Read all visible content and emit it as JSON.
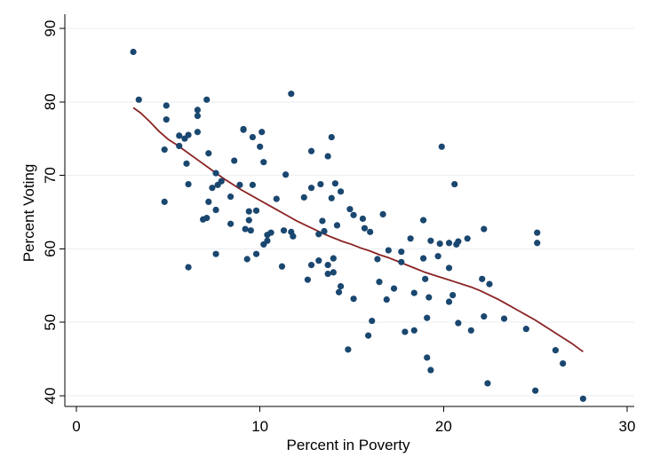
{
  "chart_data": {
    "type": "scatter",
    "title": "",
    "xlabel": "Percent in Poverty",
    "ylabel": "Percent Voting",
    "xlim": [
      0,
      30
    ],
    "ylim": [
      40,
      90
    ],
    "xticks": [
      0,
      10,
      20,
      30
    ],
    "yticks": [
      40,
      50,
      60,
      70,
      80,
      90
    ],
    "grid": "horizontal",
    "legend": "none",
    "colors": {
      "points": "#1a476f",
      "fit_line": "#8b2323",
      "background": "#ffffff",
      "grid": "#e9eef2"
    },
    "series": [
      {
        "kind": "points",
        "points": [
          [
            3.1,
            86.8
          ],
          [
            3.4,
            80.3
          ],
          [
            4.8,
            73.5
          ],
          [
            4.8,
            66.4
          ],
          [
            4.9,
            79.5
          ],
          [
            4.9,
            77.6
          ],
          [
            5.6,
            75.4
          ],
          [
            5.6,
            74.0
          ],
          [
            5.9,
            75.0
          ],
          [
            6.1,
            75.5
          ],
          [
            6.0,
            71.6
          ],
          [
            6.1,
            68.8
          ],
          [
            6.1,
            57.5
          ],
          [
            6.6,
            78.9
          ],
          [
            6.6,
            78.1
          ],
          [
            6.6,
            75.9
          ],
          [
            6.9,
            64.0
          ],
          [
            7.1,
            64.2
          ],
          [
            7.1,
            80.3
          ],
          [
            7.2,
            73.0
          ],
          [
            7.2,
            66.4
          ],
          [
            7.4,
            68.3
          ],
          [
            7.6,
            65.3
          ],
          [
            7.6,
            70.3
          ],
          [
            7.6,
            59.3
          ],
          [
            7.7,
            68.7
          ],
          [
            7.9,
            69.2
          ],
          [
            8.4,
            67.1
          ],
          [
            8.4,
            63.4
          ],
          [
            8.6,
            72.0
          ],
          [
            8.9,
            68.7
          ],
          [
            9.1,
            76.3
          ],
          [
            9.1,
            76.2
          ],
          [
            9.2,
            62.7
          ],
          [
            9.3,
            58.6
          ],
          [
            9.4,
            63.9
          ],
          [
            9.4,
            65.1
          ],
          [
            9.5,
            62.5
          ],
          [
            9.6,
            68.7
          ],
          [
            9.6,
            75.2
          ],
          [
            9.8,
            59.3
          ],
          [
            9.8,
            65.2
          ],
          [
            10.0,
            73.9
          ],
          [
            10.1,
            75.9
          ],
          [
            10.2,
            71.8
          ],
          [
            10.2,
            60.6
          ],
          [
            10.4,
            61.1
          ],
          [
            10.4,
            61.9
          ],
          [
            10.6,
            62.2
          ],
          [
            10.9,
            66.8
          ],
          [
            11.2,
            57.6
          ],
          [
            11.3,
            62.5
          ],
          [
            11.4,
            70.1
          ],
          [
            11.7,
            81.1
          ],
          [
            11.7,
            62.3
          ],
          [
            11.8,
            61.7
          ],
          [
            12.4,
            67.0
          ],
          [
            12.6,
            55.8
          ],
          [
            12.8,
            73.3
          ],
          [
            12.8,
            68.3
          ],
          [
            12.8,
            57.8
          ],
          [
            13.2,
            58.4
          ],
          [
            13.2,
            62.0
          ],
          [
            13.3,
            68.8
          ],
          [
            13.4,
            63.8
          ],
          [
            13.5,
            62.4
          ],
          [
            13.7,
            72.6
          ],
          [
            13.7,
            56.6
          ],
          [
            13.7,
            57.8
          ],
          [
            13.9,
            66.9
          ],
          [
            13.9,
            75.2
          ],
          [
            14.0,
            56.8
          ],
          [
            14.0,
            58.7
          ],
          [
            14.1,
            68.9
          ],
          [
            14.2,
            63.2
          ],
          [
            14.3,
            54.1
          ],
          [
            14.4,
            54.9
          ],
          [
            14.4,
            67.8
          ],
          [
            14.8,
            46.3
          ],
          [
            14.9,
            65.4
          ],
          [
            15.1,
            53.2
          ],
          [
            15.1,
            64.6
          ],
          [
            15.6,
            64.1
          ],
          [
            15.7,
            62.8
          ],
          [
            15.9,
            48.2
          ],
          [
            16.0,
            62.3
          ],
          [
            16.1,
            50.2
          ],
          [
            16.4,
            58.6
          ],
          [
            16.5,
            55.5
          ],
          [
            16.7,
            64.7
          ],
          [
            16.9,
            53.1
          ],
          [
            17.0,
            59.8
          ],
          [
            17.3,
            54.6
          ],
          [
            17.7,
            59.6
          ],
          [
            17.7,
            58.2
          ],
          [
            17.9,
            48.7
          ],
          [
            18.2,
            61.4
          ],
          [
            18.4,
            54.0
          ],
          [
            18.4,
            48.9
          ],
          [
            18.9,
            58.7
          ],
          [
            18.9,
            63.9
          ],
          [
            19.0,
            55.9
          ],
          [
            19.1,
            50.6
          ],
          [
            19.1,
            45.2
          ],
          [
            19.2,
            53.4
          ],
          [
            19.3,
            61.1
          ],
          [
            19.3,
            43.5
          ],
          [
            19.7,
            59.0
          ],
          [
            19.8,
            60.7
          ],
          [
            19.9,
            73.9
          ],
          [
            20.3,
            60.8
          ],
          [
            20.3,
            57.4
          ],
          [
            20.3,
            52.8
          ],
          [
            20.5,
            53.7
          ],
          [
            20.6,
            68.8
          ],
          [
            20.7,
            60.6
          ],
          [
            20.8,
            61.0
          ],
          [
            20.8,
            49.9
          ],
          [
            21.3,
            61.4
          ],
          [
            21.5,
            48.9
          ],
          [
            22.1,
            55.9
          ],
          [
            22.2,
            50.8
          ],
          [
            22.2,
            62.7
          ],
          [
            22.4,
            41.7
          ],
          [
            22.5,
            55.2
          ],
          [
            23.3,
            50.5
          ],
          [
            24.5,
            49.1
          ],
          [
            25.0,
            40.7
          ],
          [
            25.1,
            62.2
          ],
          [
            25.1,
            60.8
          ],
          [
            26.1,
            46.2
          ],
          [
            26.5,
            44.4
          ],
          [
            27.6,
            39.6
          ]
        ]
      },
      {
        "kind": "fit",
        "points": [
          [
            3.1,
            79.2
          ],
          [
            3.5,
            78.5
          ],
          [
            4.0,
            77.3
          ],
          [
            4.5,
            76.0
          ],
          [
            5.0,
            74.9
          ],
          [
            5.5,
            74.1
          ],
          [
            6.0,
            73.2
          ],
          [
            6.5,
            72.3
          ],
          [
            7.0,
            71.4
          ],
          [
            7.5,
            70.5
          ],
          [
            8.0,
            69.6
          ],
          [
            8.5,
            68.8
          ],
          [
            9.0,
            68.0
          ],
          [
            9.5,
            67.3
          ],
          [
            10.0,
            66.6
          ],
          [
            10.5,
            65.9
          ],
          [
            11.0,
            65.2
          ],
          [
            11.5,
            64.5
          ],
          [
            12.0,
            63.8
          ],
          [
            12.5,
            63.2
          ],
          [
            13.0,
            62.6
          ],
          [
            13.5,
            62.0
          ],
          [
            14.0,
            61.5
          ],
          [
            14.5,
            61.0
          ],
          [
            15.0,
            60.6
          ],
          [
            15.5,
            60.1
          ],
          [
            16.0,
            59.7
          ],
          [
            16.5,
            59.2
          ],
          [
            17.0,
            58.8
          ],
          [
            17.5,
            58.3
          ],
          [
            18.0,
            57.8
          ],
          [
            18.5,
            57.3
          ],
          [
            19.0,
            56.8
          ],
          [
            19.5,
            56.4
          ],
          [
            20.0,
            56.0
          ],
          [
            20.5,
            55.6
          ],
          [
            21.0,
            55.2
          ],
          [
            21.5,
            54.8
          ],
          [
            22.0,
            54.3
          ],
          [
            22.5,
            53.7
          ],
          [
            23.0,
            53.1
          ],
          [
            23.5,
            52.4
          ],
          [
            24.0,
            51.7
          ],
          [
            24.5,
            51.0
          ],
          [
            25.0,
            50.3
          ],
          [
            25.5,
            49.5
          ],
          [
            26.0,
            48.7
          ],
          [
            26.5,
            47.9
          ],
          [
            27.0,
            47.1
          ],
          [
            27.6,
            46.0
          ]
        ]
      }
    ]
  }
}
